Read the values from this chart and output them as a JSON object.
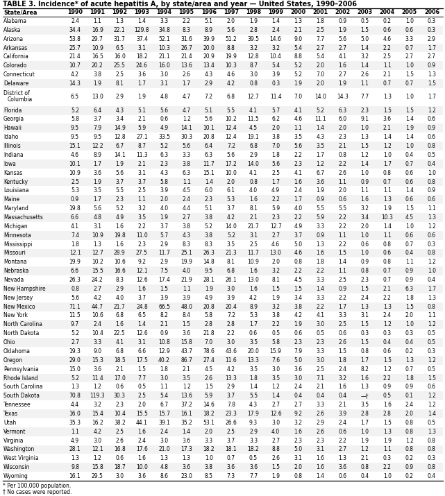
{
  "title": "TABLE 3. Incidence* of acute hepatitis A, by state/area and year — United States, 1990–2006",
  "headers": [
    "State/Area",
    "1990",
    "1991",
    "1992",
    "1993",
    "1994",
    "1995",
    "1996",
    "1997",
    "1998",
    "1999",
    "2000",
    "2001",
    "2002",
    "2003",
    "2004",
    "2005",
    "2006"
  ],
  "rows": [
    [
      "Alabama",
      "2.4",
      "1.1",
      "1.3",
      "1.4",
      "3.3",
      "2.2",
      "5.1",
      "2.0",
      "1.9",
      "1.4",
      "1.3",
      "1.8",
      "0.9",
      "0.5",
      "0.2",
      "1.0",
      "0.3"
    ],
    [
      "Alaska",
      "34.4",
      "16.9",
      "22.1",
      "129.8",
      "34.8",
      "8.3",
      "8.9",
      "5.6",
      "2.8",
      "2.4",
      "2.1",
      "2.5",
      "1.9",
      "1.5",
      "0.6",
      "0.6",
      "0.3"
    ],
    [
      "Arizona",
      "53.8",
      "29.7",
      "31.7",
      "37.4",
      "52.1",
      "31.6",
      "39.9",
      "51.2",
      "39.5",
      "14.6",
      "9.0",
      "7.7",
      "5.6",
      "5.0",
      "4.6",
      "3.3",
      "2.9"
    ],
    [
      "Arkansas",
      "25.7",
      "10.9",
      "6.5",
      "3.1",
      "10.3",
      "26.7",
      "20.0",
      "8.8",
      "3.2",
      "3.2",
      "5.4",
      "2.7",
      "2.7",
      "1.4",
      "2.2",
      "0.7",
      "1.7"
    ],
    [
      "California",
      "21.4",
      "16.5",
      "16.0",
      "18.2",
      "21.1",
      "21.4",
      "20.9",
      "19.9",
      "12.8",
      "10.4",
      "8.8",
      "5.4",
      "4.1",
      "3.2",
      "2.5",
      "2.7",
      "2.7"
    ],
    [
      "Colorado",
      "10.7",
      "20.2",
      "25.5",
      "24.6",
      "16.0",
      "13.6",
      "13.4",
      "10.3",
      "8.7",
      "5.4",
      "5.2",
      "2.0",
      "1.6",
      "1.4",
      "1.1",
      "1.0",
      "0.9"
    ],
    [
      "Connecticut",
      "4.2",
      "3.8",
      "2.5",
      "3.6",
      "3.0",
      "2.6",
      "4.3",
      "4.6",
      "3.0",
      "3.9",
      "5.2",
      "7.0",
      "2.7",
      "2.6",
      "2.1",
      "1.5",
      "1.3"
    ],
    [
      "Delaware",
      "14.3",
      "1.9",
      "8.1",
      "1.7",
      "3.1",
      "1.7",
      "2.9",
      "4.2",
      "0.8",
      "0.3",
      "1.9",
      "2.0",
      "1.9",
      "1.1",
      "0.7",
      "0.7",
      "1.5"
    ],
    [
      "District of\nColumbia",
      "6.5",
      "13.0",
      "2.9",
      "1.9",
      "4.8",
      "4.7",
      "7.2",
      "6.8",
      "12.7",
      "11.4",
      "7.0",
      "14.0",
      "14.3",
      "7.7",
      "1.3",
      "1.0",
      "1.7"
    ],
    [
      "Florida",
      "5.2",
      "6.4",
      "4.3",
      "5.1",
      "5.6",
      "4.7",
      "5.1",
      "5.5",
      "4.1",
      "5.7",
      "4.1",
      "5.2",
      "6.3",
      "2.3",
      "1.5",
      "1.5",
      "1.2"
    ],
    [
      "Georgia",
      "5.8",
      "3.7",
      "3.4",
      "2.1",
      "0.6",
      "1.2",
      "5.6",
      "10.2",
      "11.5",
      "6.2",
      "4.6",
      "11.1",
      "6.0",
      "9.1",
      "3.6",
      "1.4",
      "0.6"
    ],
    [
      "Hawaii",
      "9.5",
      "7.9",
      "14.9",
      "5.9",
      "4.9",
      "14.1",
      "10.1",
      "12.4",
      "4.5",
      "2.0",
      "1.1",
      "1.4",
      "2.0",
      "1.0",
      "2.1",
      "1.9",
      "0.9"
    ],
    [
      "Idaho",
      "9.5",
      "9.5",
      "12.8",
      "27.1",
      "33.5",
      "30.3",
      "20.8",
      "12.4",
      "19.1",
      "3.8",
      "3.5",
      "4.3",
      "2.3",
      "1.3",
      "1.4",
      "1.4",
      "0.6"
    ],
    [
      "Illinois",
      "15.1",
      "12.2",
      "6.7",
      "8.7",
      "5.2",
      "5.6",
      "6.4",
      "7.2",
      "6.8",
      "7.0",
      "5.6",
      "3.5",
      "2.1",
      "1.5",
      "1.2",
      "1.0",
      "0.8"
    ],
    [
      "Indiana",
      "4.6",
      "8.9",
      "14.1",
      "11.3",
      "6.3",
      "3.3",
      "6.3",
      "5.6",
      "2.9",
      "1.8",
      "2.2",
      "1.7",
      "0.8",
      "1.2",
      "1.0",
      "0.4",
      "0.5"
    ],
    [
      "Iowa",
      "10.1",
      "1.7",
      "1.9",
      "2.1",
      "2.3",
      "3.8",
      "11.7",
      "17.2",
      "14.0",
      "5.6",
      "2.3",
      "1.2",
      "2.2",
      "1.4",
      "1.7",
      "0.7",
      "0.4"
    ],
    [
      "Kansas",
      "10.9",
      "3.6",
      "5.6",
      "3.1",
      "4.3",
      "6.3",
      "15.1",
      "10.0",
      "4.1",
      "2.5",
      "4.1",
      "6.7",
      "2.6",
      "1.0",
      "0.8",
      "0.6",
      "1.0"
    ],
    [
      "Kentucky",
      "2.5",
      "1.9",
      "3.7",
      "3.7",
      "5.8",
      "1.1",
      "1.4",
      "2.0",
      "0.8",
      "1.7",
      "1.6",
      "3.6",
      "1.1",
      "0.9",
      "0.7",
      "0.6",
      "0.8"
    ],
    [
      "Louisiana",
      "5.3",
      "3.5",
      "5.5",
      "2.5",
      "3.9",
      "4.5",
      "6.0",
      "6.1",
      "4.0",
      "4.9",
      "2.4",
      "1.9",
      "2.0",
      "1.1",
      "1.1",
      "1.4",
      "0.9"
    ],
    [
      "Maine",
      "0.9",
      "1.7",
      "2.3",
      "1.1",
      "2.0",
      "2.4",
      "2.3",
      "5.3",
      "1.6",
      "2.2",
      "1.7",
      "0.9",
      "0.6",
      "1.6",
      "1.3",
      "0.6",
      "0.6"
    ],
    [
      "Maryland",
      "19.8",
      "5.6",
      "5.2",
      "3.2",
      "4.0",
      "4.4",
      "5.1",
      "3.7",
      "8.1",
      "5.9",
      "4.0",
      "5.5",
      "5.5",
      "3.2",
      "1.9",
      "1.5",
      "1.1"
    ],
    [
      "Massachusetts",
      "6.6",
      "4.8",
      "4.9",
      "3.5",
      "1.9",
      "2.7",
      "3.8",
      "4.2",
      "2.1",
      "2.3",
      "2.2",
      "5.9",
      "2.2",
      "3.4",
      "10.3",
      "4.5",
      "1.3"
    ],
    [
      "Michigan",
      "4.1",
      "3.1",
      "1.6",
      "2.2",
      "3.7",
      "3.8",
      "5.2",
      "14.0",
      "21.7",
      "12.7",
      "4.9",
      "3.3",
      "2.2",
      "2.0",
      "1.4",
      "1.0",
      "1.2"
    ],
    [
      "Minnesota",
      "7.4",
      "10.9",
      "19.8",
      "11.0",
      "5.7",
      "4.3",
      "3.8",
      "5.2",
      "3.1",
      "2.7",
      "3.7",
      "0.9",
      "1.1",
      "1.0",
      "1.1",
      "0.6",
      "0.6"
    ],
    [
      "Mississippi",
      "1.8",
      "1.3",
      "1.6",
      "2.3",
      "2.9",
      "8.3",
      "8.3",
      "3.5",
      "2.5",
      "4.6",
      "5.0",
      "1.3",
      "2.2",
      "0.6",
      "0.8",
      "0.7",
      "0.3"
    ],
    [
      "Missouri",
      "12.1",
      "12.7",
      "28.9",
      "27.5",
      "11.7",
      "25.1",
      "26.3",
      "21.3",
      "11.7",
      "13.0",
      "4.6",
      "1.6",
      "1.5",
      "1.0",
      "0.6",
      "0.4",
      "0.8"
    ],
    [
      "Montana",
      "19.9",
      "10.2",
      "10.6",
      "9.2",
      "2.9",
      "19.9",
      "14.8",
      "8.1",
      "10.9",
      "2.0",
      "0.8",
      "1.8",
      "1.4",
      "0.9",
      "0.8",
      "1.1",
      "1.2"
    ],
    [
      "Nebraska",
      "6.6",
      "15.5",
      "16.6",
      "12.1",
      "7.5",
      "4.0",
      "9.5",
      "6.8",
      "1.6",
      "3.2",
      "2.2",
      "2.2",
      "1.1",
      "0.8",
      "0.7",
      "0.9",
      "1.0"
    ],
    [
      "Nevada",
      "26.3",
      "24.2",
      "8.3",
      "12.6",
      "17.4",
      "21.9",
      "28.1",
      "26.1",
      "13.0",
      "8.1",
      "4.5",
      "3.3",
      "2.5",
      "2.3",
      "0.7",
      "0.9",
      "0.4"
    ],
    [
      "New Hampshire",
      "0.8",
      "2.7",
      "2.9",
      "1.6",
      "1.5",
      "1.1",
      "1.9",
      "3.0",
      "1.6",
      "1.5",
      "1.5",
      "1.4",
      "0.9",
      "1.5",
      "2.1",
      "6.3",
      "1.7"
    ],
    [
      "New Jersey",
      "5.6",
      "4.2",
      "4.0",
      "3.7",
      "3.9",
      "3.9",
      "4.9",
      "3.9",
      "4.2",
      "1.9",
      "3.4",
      "3.3",
      "2.2",
      "2.4",
      "2.2",
      "1.8",
      "1.3"
    ],
    [
      "New Mexico",
      "71.1",
      "44.7",
      "21.7",
      "24.8",
      "66.5",
      "48.0",
      "20.8",
      "20.4",
      "8.9",
      "3.2",
      "3.8",
      "2.2",
      "1.7",
      "1.3",
      "1.3",
      "1.5",
      "0.8"
    ],
    [
      "New York",
      "11.5",
      "10.6",
      "6.8",
      "6.5",
      "8.2",
      "8.4",
      "5.8",
      "7.2",
      "5.3",
      "3.8",
      "4.2",
      "4.1",
      "3.3",
      "3.1",
      "2.4",
      "2.0",
      "1.1"
    ],
    [
      "North Carolina",
      "9.7",
      "2.4",
      "1.6",
      "1.4",
      "2.1",
      "1.5",
      "2.8",
      "2.8",
      "1.7",
      "2.2",
      "1.9",
      "3.0",
      "2.5",
      "1.5",
      "1.2",
      "1.0",
      "1.2"
    ],
    [
      "North Dakota",
      "5.2",
      "10.4",
      "22.5",
      "12.6",
      "0.9",
      "3.6",
      "21.8",
      "2.2",
      "0.6",
      "0.5",
      "0.6",
      "0.5",
      "0.6",
      "0.3",
      "0.3",
      "0.3",
      "0.5"
    ],
    [
      "Ohio",
      "2.7",
      "3.3",
      "4.1",
      "3.1",
      "10.8",
      "15.8",
      "7.0",
      "3.0",
      "3.5",
      "5.8",
      "2.3",
      "2.3",
      "2.6",
      "1.5",
      "0.4",
      "0.4",
      "0.5"
    ],
    [
      "Oklahoma",
      "19.3",
      "9.0",
      "6.8",
      "6.6",
      "12.9",
      "43.7",
      "78.6",
      "43.6",
      "20.0",
      "15.9",
      "7.9",
      "3.3",
      "1.5",
      "0.8",
      "0.6",
      "0.2",
      "0.3"
    ],
    [
      "Oregon",
      "29.0",
      "15.3",
      "18.5",
      "17.5",
      "40.2",
      "86.7",
      "27.4",
      "11.6",
      "13.3",
      "7.6",
      "5.0",
      "3.0",
      "1.8",
      "1.7",
      "1.5",
      "1.3",
      "1.2"
    ],
    [
      "Pennsylvania",
      "15.0",
      "3.6",
      "2.1",
      "1.5",
      "1.8",
      "2.1",
      "4.5",
      "4.2",
      "3.5",
      "3.0",
      "3.6",
      "2.5",
      "2.4",
      "8.2",
      "1.2",
      "0.7",
      "0.5"
    ],
    [
      "Rhode Island",
      "5.2",
      "11.4",
      "17.0",
      "7.7",
      "3.0",
      "3.5",
      "2.6",
      "13.3",
      "1.8",
      "3.5",
      "3.0",
      "7.1",
      "3.2",
      "1.6",
      "2.2",
      "1.8",
      "1.5"
    ],
    [
      "South Carolina",
      "1.3",
      "1.2",
      "0.6",
      "0.5",
      "1.1",
      "1.2",
      "1.5",
      "2.9",
      "1.4",
      "1.2",
      "2.4",
      "2.1",
      "1.6",
      "1.3",
      "0.9",
      "0.9",
      "0.6"
    ],
    [
      "South Dakota",
      "70.8",
      "119.3",
      "30.3",
      "2.5",
      "5.4",
      "13.6",
      "5.9",
      "3.7",
      "5.5",
      "1.4",
      "0.4",
      "0.4",
      "0.4",
      "—†",
      "0.5",
      "0.1",
      "1.2"
    ],
    [
      "Tennessee",
      "4.4",
      "3.2",
      "2.3",
      "2.0",
      "6.7",
      "37.2",
      "14.6",
      "7.8",
      "4.3",
      "2.7",
      "2.7",
      "3.3",
      "2.1",
      "3.5",
      "1.6",
      "2.4",
      "1.2"
    ],
    [
      "Texas",
      "16.0",
      "15.4",
      "10.4",
      "15.5",
      "15.7",
      "16.1",
      "18.2",
      "23.3",
      "17.9",
      "12.6",
      "9.2",
      "2.6",
      "3.9",
      "2.8",
      "2.8",
      "2.0",
      "1.4"
    ],
    [
      "Utah",
      "35.3",
      "16.2",
      "38.2",
      "44.1",
      "39.1",
      "35.2",
      "53.1",
      "26.6",
      "9.3",
      "3.0",
      "3.2",
      "2.9",
      "2.4",
      "1.7",
      "1.5",
      "0.8",
      "0.5"
    ],
    [
      "Vermont",
      "1.1",
      "4.2",
      "2.5",
      "1.6",
      "2.4",
      "1.4",
      "2.0",
      "2.5",
      "2.9",
      "4.0",
      "1.6",
      "2.6",
      "0.6",
      "1.0",
      "1.3",
      "0.8",
      "1.3"
    ],
    [
      "Virginia",
      "4.9",
      "3.0",
      "2.6",
      "2.4",
      "3.0",
      "3.6",
      "3.3",
      "3.7",
      "3.3",
      "2.7",
      "2.3",
      "2.3",
      "2.2",
      "1.9",
      "1.9",
      "1.2",
      "0.8"
    ],
    [
      "Washington",
      "28.1",
      "12.1",
      "16.8",
      "17.6",
      "21.0",
      "17.3",
      "18.2",
      "18.1",
      "18.2",
      "8.8",
      "5.0",
      "3.1",
      "2.7",
      "1.2",
      "1.1",
      "0.8",
      "0.8"
    ],
    [
      "West Virginia",
      "1.3",
      "1.2",
      "0.6",
      "1.6",
      "1.3",
      "1.3",
      "1.0",
      "0.7",
      "0.5",
      "2.6",
      "3.1",
      "1.6",
      "1.3",
      "2.1",
      "0.3",
      "0.2",
      "0.3"
    ],
    [
      "Wisconsin",
      "9.8",
      "15.8",
      "18.7",
      "10.0",
      "4.8",
      "3.6",
      "3.8",
      "3.6",
      "3.6",
      "1.5",
      "2.0",
      "1.6",
      "3.6",
      "0.8",
      "2.2",
      "0.9",
      "0.8"
    ],
    [
      "Wyoming",
      "16.1",
      "29.5",
      "3.0",
      "3.6",
      "8.6",
      "23.0",
      "8.5",
      "7.3",
      "7.7",
      "1.9",
      "0.8",
      "1.4",
      "0.6",
      "0.4",
      "1.0",
      "0.2",
      "0.4"
    ]
  ],
  "footnotes": [
    "* Per 100,000 population.",
    "† No cases were reported."
  ],
  "bg_color": "#ffffff",
  "text_color": "#000000",
  "font_size": 5.5,
  "title_font_size": 7.0,
  "header_font_size": 5.8
}
